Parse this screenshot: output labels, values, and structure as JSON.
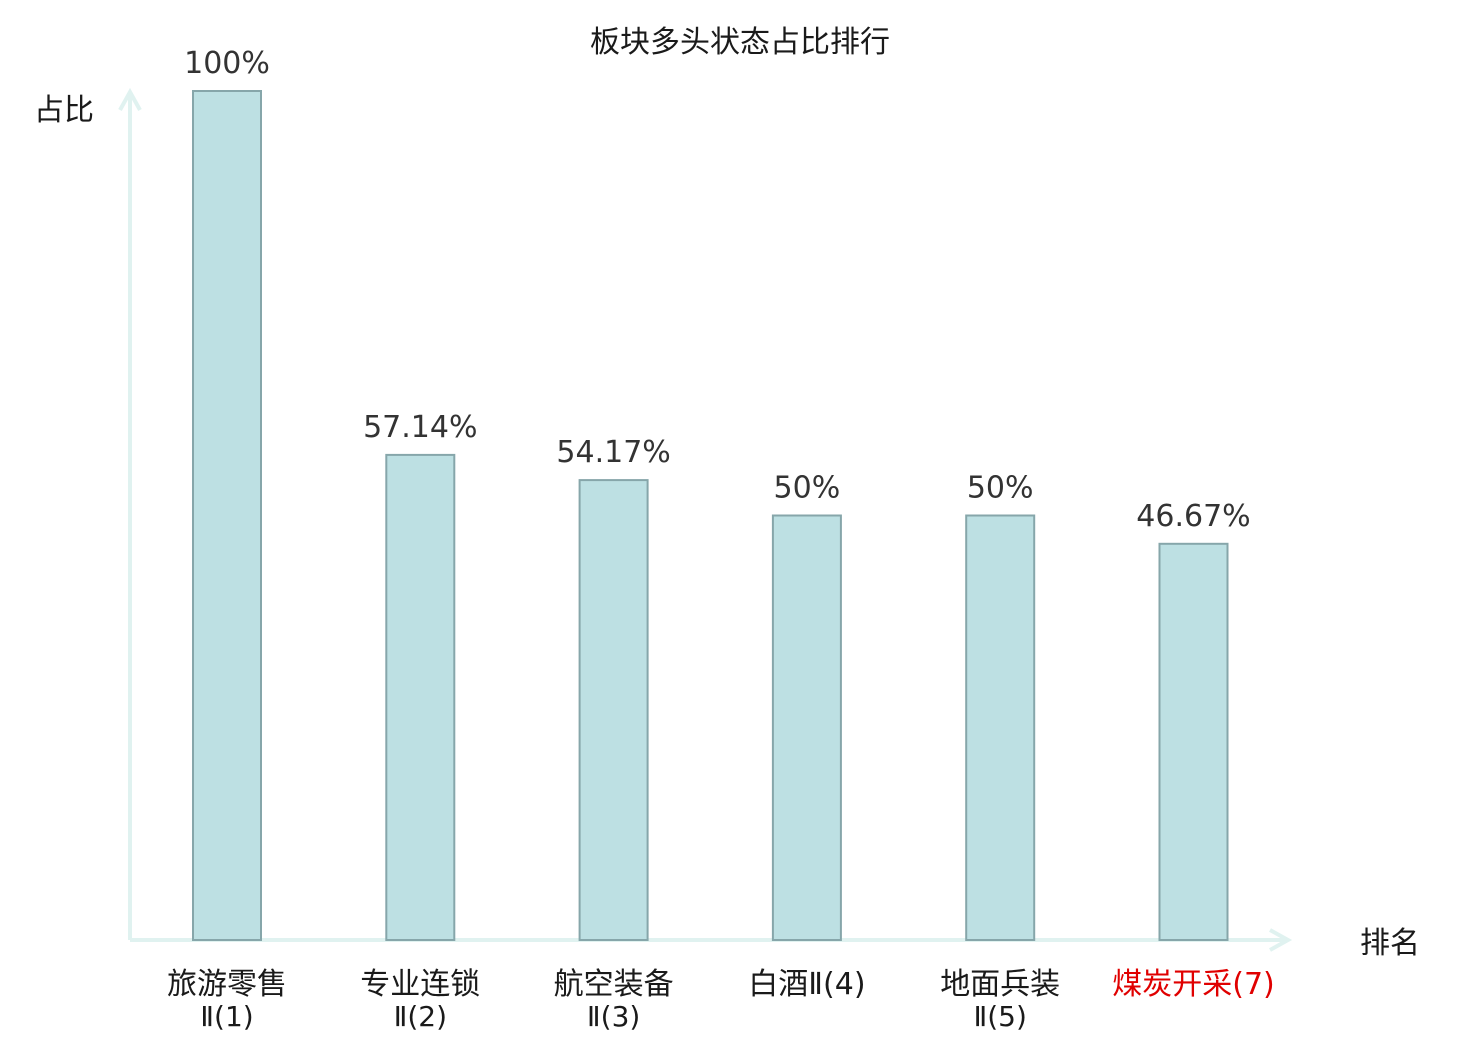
{
  "chart_data": {
    "type": "bar",
    "title": "板块多头状态占比排行",
    "ylabel": "占比",
    "xlabel": "排名",
    "ylim": [
      0,
      100
    ],
    "grid": false,
    "categories": [
      {
        "line1": "旅游零售",
        "line2": "Ⅱ(1)",
        "highlight": false
      },
      {
        "line1": "专业连锁",
        "line2": "Ⅱ(2)",
        "highlight": false
      },
      {
        "line1": "航空装备",
        "line2": "Ⅱ(3)",
        "highlight": false
      },
      {
        "line1": "白酒Ⅱ(4)",
        "line2": "",
        "highlight": false
      },
      {
        "line1": "地面兵装",
        "line2": "Ⅱ(5)",
        "highlight": false
      },
      {
        "line1": "煤炭开采(7)",
        "line2": "",
        "highlight": true
      }
    ],
    "values": [
      100,
      57.14,
      54.17,
      50,
      50,
      46.67
    ],
    "value_labels": [
      "100%",
      "57.14%",
      "54.17%",
      "50%",
      "50%",
      "46.67%"
    ],
    "colors": {
      "bar_fill": "#bde0e3",
      "bar_stroke": "#86a6aa",
      "axis": "#e0f2f0",
      "highlight_text": "#e00000",
      "normal_text": "#1a1a1a",
      "value_text": "#333333"
    }
  }
}
